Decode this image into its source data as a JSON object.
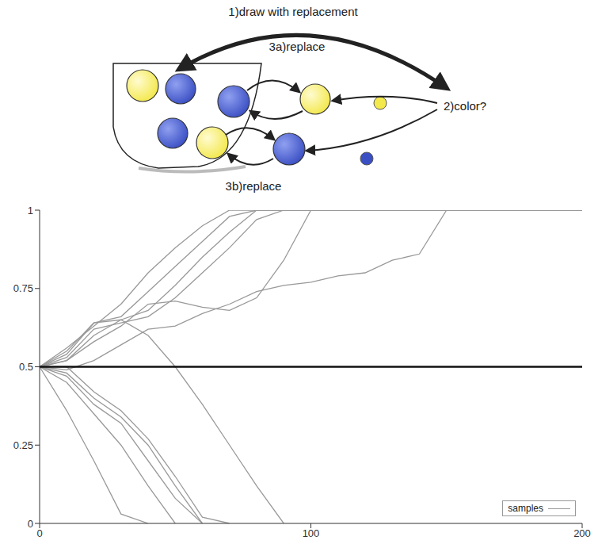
{
  "diagram": {
    "labels": [
      "1)draw with replacement",
      "3a)replace",
      "2)color?",
      "3b)replace"
    ]
  },
  "chart_data": {
    "type": "line",
    "x": [
      0,
      10,
      20,
      30,
      40,
      50,
      60,
      70,
      80,
      90,
      100,
      110,
      120,
      130,
      140,
      150,
      160,
      170,
      180,
      190,
      200
    ],
    "xlim": [
      0,
      200
    ],
    "xticks": [
      0,
      100,
      200
    ],
    "ylim": [
      0,
      1
    ],
    "yticks": [
      0,
      0.25,
      0.5,
      0.75,
      1
    ],
    "reference_y": 0.5,
    "legend": "lower right",
    "series": [
      {
        "name": "samples",
        "color": "#999999",
        "lines": [
          [
            0.5,
            0.56,
            0.63,
            0.7,
            0.8,
            0.88,
            0.95,
            1,
            1,
            1,
            1,
            1,
            1,
            1,
            1,
            1,
            1,
            1,
            1,
            1,
            1
          ],
          [
            0.5,
            0.54,
            0.64,
            0.66,
            0.74,
            0.82,
            0.9,
            0.98,
            1,
            1,
            1,
            1,
            1,
            1,
            1,
            1,
            1,
            1,
            1,
            1,
            1
          ],
          [
            0.5,
            0.52,
            0.6,
            0.65,
            0.68,
            0.76,
            0.85,
            0.93,
            1,
            1,
            1,
            1,
            1,
            1,
            1,
            1,
            1,
            1,
            1,
            1,
            1
          ],
          [
            0.5,
            0.53,
            0.62,
            0.64,
            0.66,
            0.72,
            0.8,
            0.88,
            0.97,
            1,
            1,
            1,
            1,
            1,
            1,
            1,
            1,
            1,
            1,
            1,
            1
          ],
          [
            0.5,
            0.52,
            0.58,
            0.63,
            0.7,
            0.71,
            0.69,
            0.68,
            0.72,
            0.84,
            1,
            1,
            1,
            1,
            1,
            1,
            1,
            1,
            1,
            1,
            1
          ],
          [
            0.5,
            0.49,
            0.52,
            0.57,
            0.62,
            0.63,
            0.67,
            0.7,
            0.74,
            0.76,
            0.77,
            0.79,
            0.8,
            0.84,
            0.86,
            1,
            1,
            1,
            1,
            1,
            1
          ],
          [
            0.5,
            0.55,
            0.64,
            0.65,
            0.6,
            0.5,
            0.38,
            0.25,
            0.12,
            0,
            null,
            null,
            null,
            null,
            null,
            null,
            null,
            null,
            null,
            null,
            null
          ],
          [
            0.5,
            0.36,
            0.2,
            0.03,
            0,
            null,
            null,
            null,
            null,
            null,
            null,
            null,
            null,
            null,
            null,
            null,
            null,
            null,
            null,
            null,
            null
          ],
          [
            0.5,
            0.45,
            0.35,
            0.25,
            0.12,
            0,
            null,
            null,
            null,
            null,
            null,
            null,
            null,
            null,
            null,
            null,
            null,
            null,
            null,
            null,
            null
          ],
          [
            0.5,
            0.47,
            0.38,
            0.32,
            0.2,
            0.08,
            0,
            null,
            null,
            null,
            null,
            null,
            null,
            null,
            null,
            null,
            null,
            null,
            null,
            null,
            null
          ],
          [
            0.5,
            0.48,
            0.4,
            0.34,
            0.25,
            0.12,
            0,
            null,
            null,
            null,
            null,
            null,
            null,
            null,
            null,
            null,
            null,
            null,
            null,
            null,
            null
          ],
          [
            0.5,
            0.5,
            0.42,
            0.36,
            0.27,
            0.15,
            0.02,
            0,
            null,
            null,
            null,
            null,
            null,
            null,
            null,
            null,
            null,
            null,
            null,
            null,
            null
          ]
        ]
      }
    ]
  }
}
